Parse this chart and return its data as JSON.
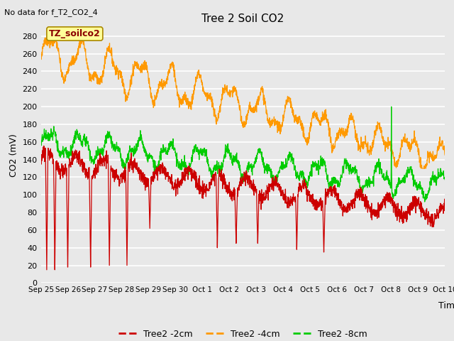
{
  "title": "Tree 2 Soil CO2",
  "subtitle": "No data for f_T2_CO2_4",
  "ylabel": "CO2 (mV)",
  "xlabel": "Time",
  "annotation": "TZ_soilco2",
  "plot_bg_color": "#e8e8e8",
  "grid_color": "white",
  "ylim": [
    0,
    290
  ],
  "yticks": [
    0,
    20,
    40,
    60,
    80,
    100,
    120,
    140,
    160,
    180,
    200,
    220,
    240,
    260,
    280
  ],
  "xtick_labels": [
    "Sep 25",
    "Sep 26",
    "Sep 27",
    "Sep 28",
    "Sep 29",
    "Sep 30",
    "Oct 1",
    "Oct 2",
    "Oct 3",
    "Oct 4",
    "Oct 5",
    "Oct 6",
    "Oct 7",
    "Oct 8",
    "Oct 9",
    "Oct 10"
  ],
  "red_label": "Tree2 -2cm",
  "orange_label": "Tree2 -4cm",
  "green_label": "Tree2 -8cm",
  "red_color": "#cc0000",
  "orange_color": "#ff9900",
  "green_color": "#00cc00"
}
